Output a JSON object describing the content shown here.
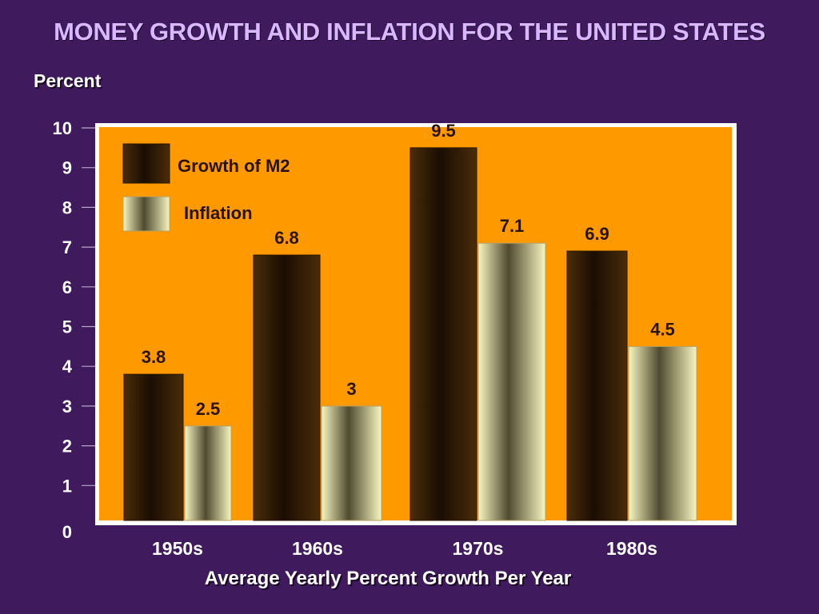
{
  "title": "MONEY GROWTH AND INFLATION FOR THE UNITED STATES",
  "colors": {
    "background": "#3f1a5c",
    "plot_area": "#ff9900",
    "m2_bar": "#3a2208",
    "inflation_bar": "#f2f0b0"
  },
  "chart_data": {
    "type": "bar",
    "title": "MONEY GROWTH AND INFLATION FOR THE UNITED STATES",
    "ylabel": "Percent",
    "xlabel": "Average Yearly Percent Growth Per Year",
    "categories": [
      "1950s",
      "1960s",
      "1970s",
      "1980s"
    ],
    "series": [
      {
        "name": "Growth of M2",
        "values": [
          3.8,
          6.8,
          9.5,
          6.9
        ]
      },
      {
        "name": "Inflation",
        "values": [
          2.5,
          3,
          7.1,
          4.5
        ]
      }
    ],
    "data_labels": [
      [
        "3.8",
        "6.8",
        "9.5",
        "6.9"
      ],
      [
        "2.5",
        "3",
        "7.1",
        "4.5"
      ]
    ],
    "yticks": [
      0,
      1,
      2,
      3,
      4,
      5,
      6,
      7,
      8,
      9,
      10
    ],
    "ylim": [
      0,
      10
    ],
    "legend": "top-left",
    "grid": false
  }
}
